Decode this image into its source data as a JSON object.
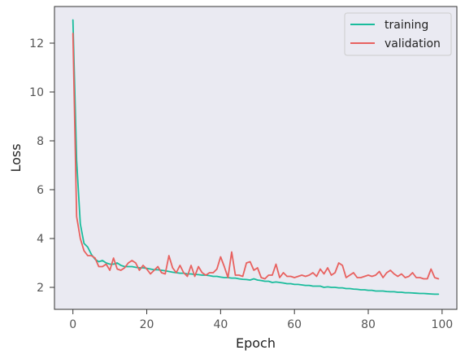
{
  "chart_data": {
    "type": "line",
    "xlabel": "Epoch",
    "ylabel": "Loss",
    "xlim": [
      -5,
      104
    ],
    "ylim": [
      1.1,
      13.5
    ],
    "xticks": [
      0,
      20,
      40,
      60,
      80,
      100
    ],
    "yticks": [
      2,
      4,
      6,
      8,
      10,
      12
    ],
    "grid": false,
    "legend_position": "top-right",
    "x": [
      0,
      1,
      2,
      3,
      4,
      5,
      6,
      7,
      8,
      9,
      10,
      11,
      12,
      13,
      14,
      15,
      16,
      17,
      18,
      19,
      20,
      21,
      22,
      23,
      24,
      25,
      26,
      27,
      28,
      29,
      30,
      31,
      32,
      33,
      34,
      35,
      36,
      37,
      38,
      39,
      40,
      41,
      42,
      43,
      44,
      45,
      46,
      47,
      48,
      49,
      50,
      51,
      52,
      53,
      54,
      55,
      56,
      57,
      58,
      59,
      60,
      61,
      62,
      63,
      64,
      65,
      66,
      67,
      68,
      69,
      70,
      71,
      72,
      73,
      74,
      75,
      76,
      77,
      78,
      79,
      80,
      81,
      82,
      83,
      84,
      85,
      86,
      87,
      88,
      89,
      90,
      91,
      92,
      93,
      94,
      95,
      96,
      97,
      98,
      99
    ],
    "series": [
      {
        "name": "training",
        "color": "#1abc9c",
        "values": [
          12.95,
          7.2,
          4.6,
          3.8,
          3.65,
          3.35,
          3.15,
          3.05,
          3.1,
          3.0,
          2.95,
          2.95,
          3.0,
          2.9,
          2.85,
          2.85,
          2.85,
          2.82,
          2.8,
          2.8,
          2.78,
          2.75,
          2.72,
          2.72,
          2.7,
          2.68,
          2.65,
          2.62,
          2.6,
          2.58,
          2.58,
          2.55,
          2.55,
          2.53,
          2.52,
          2.5,
          2.5,
          2.48,
          2.45,
          2.45,
          2.42,
          2.4,
          2.4,
          2.38,
          2.38,
          2.35,
          2.33,
          2.32,
          2.3,
          2.35,
          2.3,
          2.28,
          2.25,
          2.25,
          2.2,
          2.22,
          2.2,
          2.18,
          2.15,
          2.15,
          2.12,
          2.12,
          2.1,
          2.08,
          2.08,
          2.05,
          2.05,
          2.05,
          2.0,
          2.02,
          2.0,
          2.0,
          1.98,
          1.98,
          1.95,
          1.95,
          1.93,
          1.92,
          1.9,
          1.9,
          1.88,
          1.88,
          1.85,
          1.85,
          1.85,
          1.83,
          1.82,
          1.82,
          1.8,
          1.8,
          1.78,
          1.78,
          1.77,
          1.76,
          1.75,
          1.75,
          1.74,
          1.73,
          1.72,
          1.72
        ]
      },
      {
        "name": "validation",
        "color": "#e8615f",
        "values": [
          12.4,
          4.9,
          4.0,
          3.5,
          3.3,
          3.3,
          3.2,
          2.85,
          2.85,
          2.95,
          2.7,
          3.2,
          2.75,
          2.7,
          2.8,
          3.0,
          3.1,
          3.0,
          2.7,
          2.9,
          2.75,
          2.55,
          2.7,
          2.85,
          2.6,
          2.55,
          3.3,
          2.8,
          2.6,
          2.9,
          2.6,
          2.45,
          2.9,
          2.45,
          2.85,
          2.6,
          2.5,
          2.6,
          2.6,
          2.75,
          3.25,
          2.85,
          2.4,
          3.45,
          2.5,
          2.5,
          2.45,
          3.0,
          3.05,
          2.7,
          2.8,
          2.4,
          2.35,
          2.5,
          2.5,
          2.95,
          2.4,
          2.6,
          2.45,
          2.45,
          2.4,
          2.45,
          2.5,
          2.45,
          2.5,
          2.6,
          2.45,
          2.75,
          2.55,
          2.8,
          2.5,
          2.6,
          3.0,
          2.9,
          2.4,
          2.5,
          2.6,
          2.4,
          2.4,
          2.45,
          2.5,
          2.45,
          2.5,
          2.65,
          2.4,
          2.6,
          2.7,
          2.55,
          2.45,
          2.55,
          2.4,
          2.45,
          2.6,
          2.4,
          2.4,
          2.35,
          2.35,
          2.75,
          2.4,
          2.35
        ]
      }
    ]
  }
}
